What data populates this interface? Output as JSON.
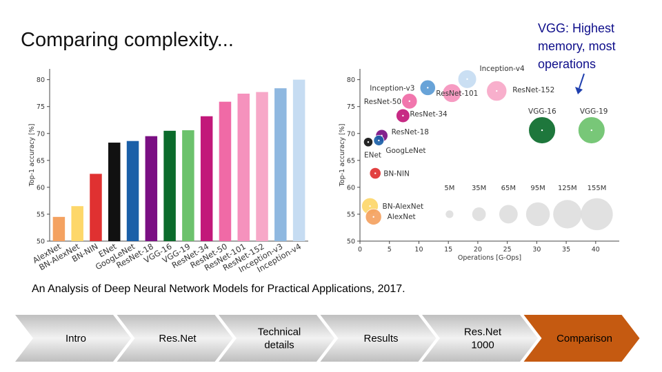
{
  "slide": {
    "title": "Comparing complexity...",
    "note": "VGG: Highest memory, most operations",
    "citation": "An Analysis of Deep Neural Network Models for Practical Applications, 2017."
  },
  "colors": {
    "note_text": "#0d0d8a",
    "nav_active": "#c55a11",
    "nav_inactive": "#a6a6a6"
  },
  "nav": {
    "steps": [
      {
        "label": [
          "Intro"
        ],
        "active": false
      },
      {
        "label": [
          "Res.Net"
        ],
        "active": false
      },
      {
        "label": [
          "Technical",
          "details"
        ],
        "active": false
      },
      {
        "label": [
          "Results"
        ],
        "active": false
      },
      {
        "label": [
          "Res.Net",
          "1000"
        ],
        "active": false
      },
      {
        "label": [
          "Comparison"
        ],
        "active": true
      }
    ]
  },
  "chart_data": [
    {
      "type": "bar",
      "title": "",
      "xlabel": "",
      "ylabel": "Top-1 accuracy [%]",
      "ylim": [
        50,
        82
      ],
      "yticks": [
        50,
        55,
        60,
        65,
        70,
        75,
        80
      ],
      "categories": [
        "AlexNet",
        "BN-AlexNet",
        "BN-NIN",
        "ENet",
        "GoogLeNet",
        "ResNet-18",
        "VGG-16",
        "VGG-19",
        "ResNet-34",
        "ResNet-50",
        "ResNet-101",
        "ResNet-152",
        "Inception-v3",
        "Inception-v4"
      ],
      "values": [
        54.5,
        56.5,
        62.5,
        68.3,
        68.6,
        69.5,
        70.5,
        70.6,
        73.2,
        75.9,
        77.4,
        77.7,
        78.4,
        80.0
      ],
      "colors": [
        "#f4a261",
        "#fdd76a",
        "#e03131",
        "#111111",
        "#1a5fa8",
        "#7a0f83",
        "#0b6b2b",
        "#6cc26c",
        "#c2187a",
        "#f06aa6",
        "#f592bd",
        "#f7a8c8",
        "#8fb8e0",
        "#c6dcf2"
      ]
    },
    {
      "type": "scatter",
      "title": "",
      "xlabel": "Operations [G-Ops]",
      "ylabel": "Top-1 accuracy [%]",
      "xlim": [
        0,
        44
      ],
      "ylim": [
        50,
        82
      ],
      "xticks": [
        0,
        5,
        10,
        15,
        20,
        25,
        30,
        35,
        40
      ],
      "yticks": [
        50,
        55,
        60,
        65,
        70,
        75,
        80
      ],
      "points": [
        {
          "name": "AlexNet",
          "x": 2.3,
          "y": 54.5,
          "size": 11,
          "color": "#f4a261"
        },
        {
          "name": "BN-AlexNet",
          "x": 1.7,
          "y": 56.5,
          "size": 12,
          "color": "#fdd76a"
        },
        {
          "name": "BN-NIN",
          "x": 2.6,
          "y": 62.6,
          "size": 4,
          "color": "#e03131"
        },
        {
          "name": "ENet",
          "x": 1.4,
          "y": 68.4,
          "size": 2,
          "color": "#111111"
        },
        {
          "name": "GoogLeNet",
          "x": 3.2,
          "y": 68.7,
          "size": 3,
          "color": "#1a5fa8"
        },
        {
          "name": "ResNet-18",
          "x": 3.7,
          "y": 69.6,
          "size": 5,
          "color": "#7a0f83"
        },
        {
          "name": "ResNet-34",
          "x": 7.3,
          "y": 73.3,
          "size": 7,
          "color": "#c2187a"
        },
        {
          "name": "ResNet-50",
          "x": 8.4,
          "y": 76.0,
          "size": 10,
          "color": "#f06aa6"
        },
        {
          "name": "Inception-v3",
          "x": 11.5,
          "y": 78.5,
          "size": 10,
          "color": "#5b9bd5"
        },
        {
          "name": "ResNet-101",
          "x": 15.6,
          "y": 77.5,
          "size": 16,
          "color": "#f592bd"
        },
        {
          "name": "Inception-v4",
          "x": 18.2,
          "y": 80.1,
          "size": 16,
          "color": "#c6dcf2"
        },
        {
          "name": "ResNet-152",
          "x": 23.2,
          "y": 77.9,
          "size": 20,
          "color": "#f7a8c8"
        },
        {
          "name": "VGG-16",
          "x": 30.9,
          "y": 70.6,
          "size": 40,
          "color": "#0b6b2b"
        },
        {
          "name": "VGG-19",
          "x": 39.3,
          "y": 70.6,
          "size": 40,
          "color": "#6cc26c"
        }
      ],
      "size_legend": [
        {
          "label": "5M",
          "x": 15.2,
          "size": 1
        },
        {
          "label": "35M",
          "x": 20.2,
          "size": 7
        },
        {
          "label": "65M",
          "x": 25.2,
          "size": 16
        },
        {
          "label": "95M",
          "x": 30.2,
          "size": 30
        },
        {
          "label": "125M",
          "x": 35.2,
          "size": 46
        },
        {
          "label": "155M",
          "x": 40.2,
          "size": 60
        }
      ]
    }
  ]
}
